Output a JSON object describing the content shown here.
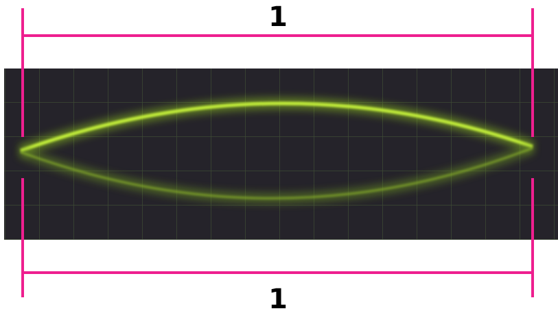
{
  "labels": {
    "top": "1",
    "bottom": "1"
  }
}
